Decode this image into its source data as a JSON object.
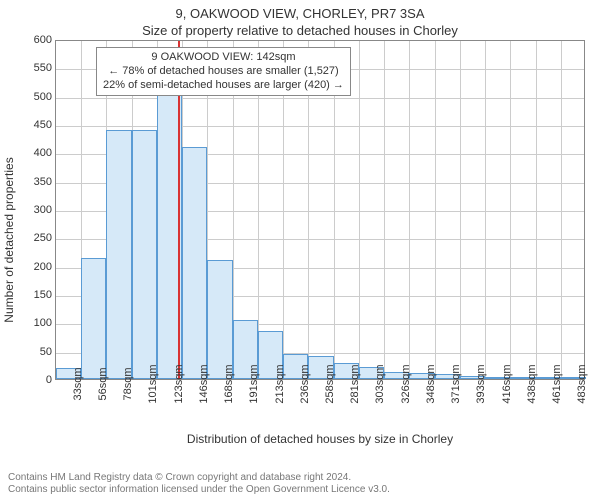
{
  "title": {
    "main": "9, OAKWOOD VIEW, CHORLEY, PR7 3SA",
    "sub": "Size of property relative to detached houses in Chorley"
  },
  "chart": {
    "type": "histogram",
    "y_label": "Number of detached properties",
    "x_title": "Distribution of detached houses by size in Chorley",
    "ylim": [
      0,
      600
    ],
    "ytick_step": 50,
    "x_start": 33,
    "x_step": 22.5,
    "x_count": 21,
    "x_unit": "sqm",
    "bar_color": "#d6e9f8",
    "bar_border": "#5a9bd4",
    "grid_color": "#cccccc",
    "axis_color": "#888888",
    "background_color": "#ffffff",
    "ref_value": 142,
    "ref_color": "#d93333",
    "bars": [
      20,
      213,
      440,
      440,
      545,
      410,
      210,
      104,
      85,
      45,
      40,
      28,
      22,
      12,
      10,
      8,
      6,
      3,
      3,
      2,
      2
    ],
    "annotation": {
      "line1": "9 OAKWOOD VIEW: 142sqm",
      "line2": "← 78% of detached houses are smaller (1,527)",
      "line3": "22% of semi-detached houses are larger (420) →"
    },
    "title_fontsize": 13,
    "label_fontsize": 12,
    "tick_fontsize": 11
  },
  "footer": {
    "line1": "Contains HM Land Registry data © Crown copyright and database right 2024.",
    "line2": "Contains public sector information licensed under the Open Government Licence v3.0."
  }
}
